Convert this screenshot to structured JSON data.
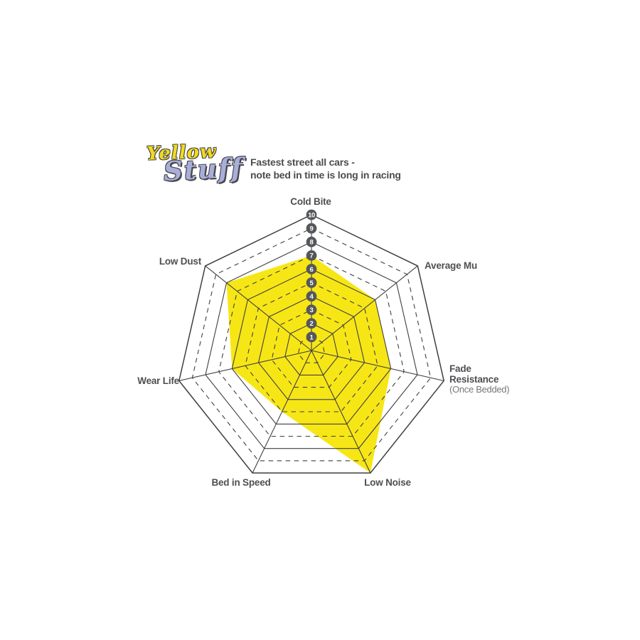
{
  "logo": {
    "word1": "Yellow",
    "word2": "Stuff",
    "word1_color": "#F2DB1E",
    "word2_color": "#A9AED9"
  },
  "header": {
    "title_line1": "Fastest street all cars -",
    "title_line2": "note bed in time is long in racing"
  },
  "chart_data": {
    "type": "radar",
    "categories": [
      "Cold Bite",
      "Average Mu",
      "Fade Resistance",
      "Low Noise",
      "Bed in Speed",
      "Wear Life",
      "Low Dust"
    ],
    "values": [
      7,
      6,
      6,
      10,
      5,
      6,
      8
    ],
    "axis_note": "(Once Bedded)",
    "axis_note_target": "Fade Resistance",
    "scale_min": 1,
    "scale_max": 10,
    "scale_ticks": [
      1,
      2,
      3,
      4,
      5,
      6,
      7,
      8,
      9,
      10
    ],
    "grid": "heptagon rings, odd rings dashed, even rings solid",
    "legend_position": "none",
    "style": {
      "fill_color": "#F7E616",
      "grid_color": "#3E3F41",
      "badge_fill": "#55575B",
      "badge_text_color": "#FFFFFF",
      "label_color": "#4E4F52"
    }
  }
}
